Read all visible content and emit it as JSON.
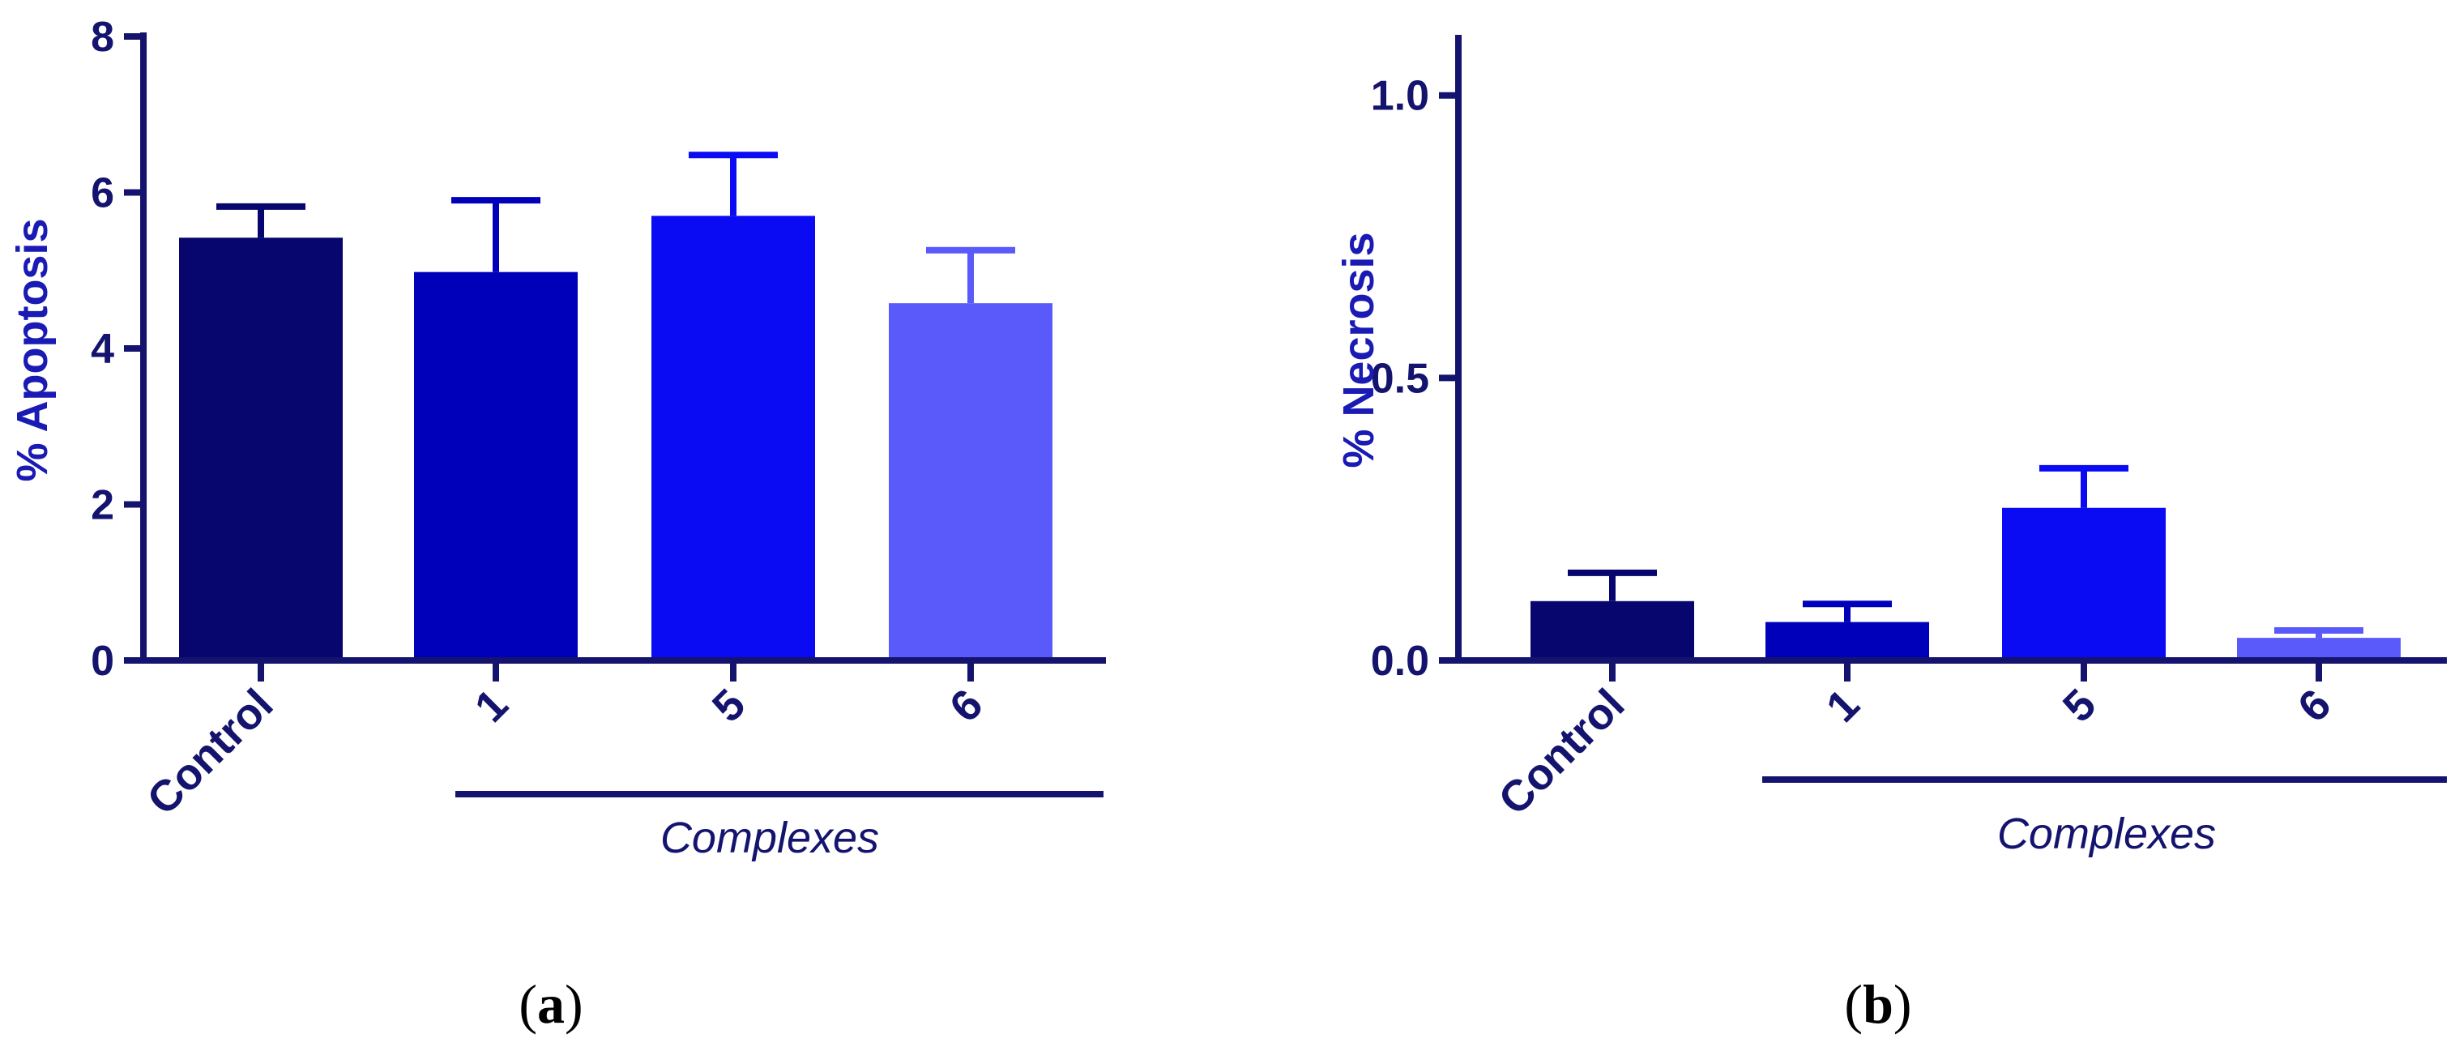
{
  "colors": {
    "axis": "#14146e",
    "title": "#1a1ab4",
    "bars": [
      "#06066e",
      "#0000bb",
      "#0b0bf3",
      "#5a5afb"
    ]
  },
  "chart_data": [
    {
      "type": "bar",
      "panel": "a",
      "panel_label_open": "(",
      "panel_label_letter": "a",
      "panel_label_close": ")",
      "ylabel": "% Apoptosis",
      "xlabel": "",
      "ylim": [
        0,
        8
      ],
      "yticks": [
        0,
        2,
        4,
        6,
        8
      ],
      "ytick_labels": [
        "0",
        "2",
        "4",
        "6",
        "8"
      ],
      "categories": [
        "Control",
        "1",
        "5",
        "6"
      ],
      "values": [
        5.42,
        4.98,
        5.7,
        4.58
      ],
      "errors": [
        0.4,
        0.92,
        0.78,
        0.68
      ],
      "group_label": "Complexes",
      "group_categories": [
        "1",
        "5",
        "6"
      ]
    },
    {
      "type": "bar",
      "panel": "b",
      "panel_label_open": "(",
      "panel_label_letter": "b",
      "panel_label_close": ")",
      "ylabel": "% Necrosis",
      "xlabel": "",
      "ylim": [
        0,
        1.1
      ],
      "yticks": [
        0,
        0.5,
        1.0
      ],
      "ytick_labels": [
        "0.0",
        "0.5",
        "1.0"
      ],
      "categories": [
        "Control",
        "1",
        "5",
        "6"
      ],
      "values": [
        0.105,
        0.068,
        0.27,
        0.04
      ],
      "errors": [
        0.05,
        0.032,
        0.07,
        0.013
      ],
      "group_label": "Complexes",
      "group_categories": [
        "1",
        "5",
        "6"
      ]
    }
  ]
}
